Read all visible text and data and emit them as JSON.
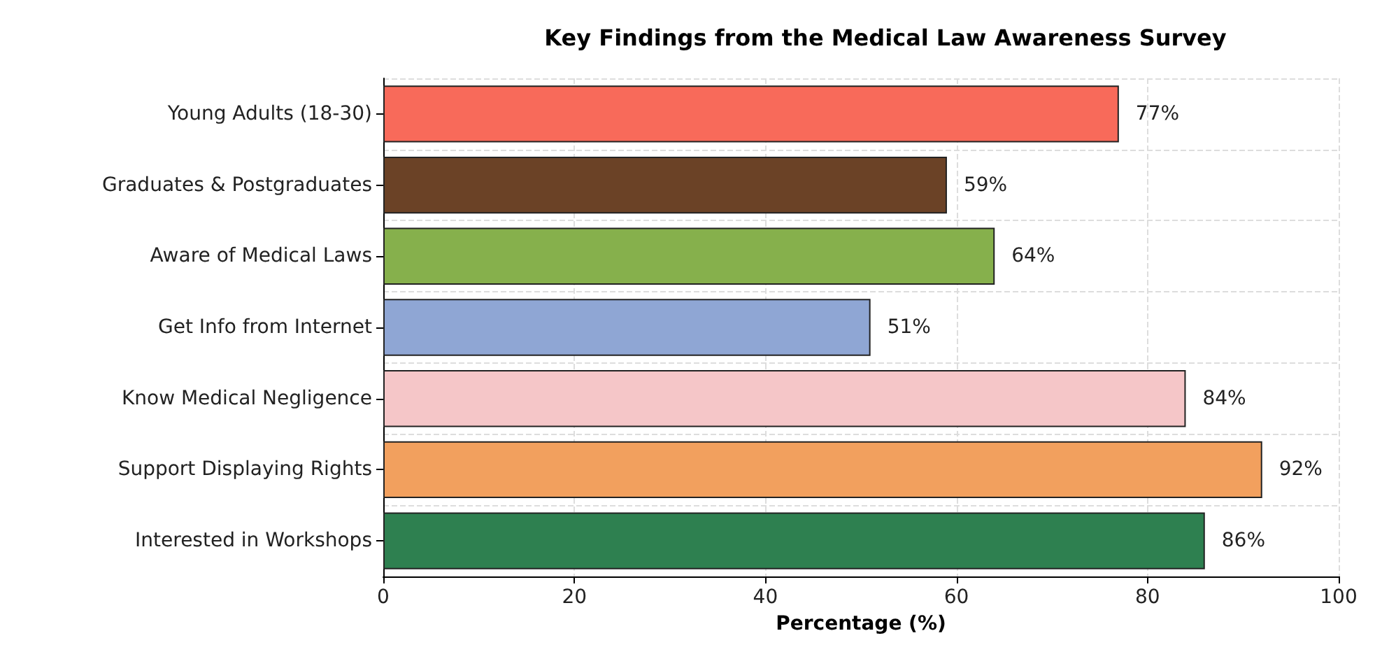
{
  "chart_data": {
    "type": "bar",
    "orientation": "horizontal",
    "title": "Key Findings from the Medical Law Awareness Survey",
    "xlabel": "Percentage (%)",
    "categories": [
      "Young Adults (18-30)",
      "Graduates & Postgraduates",
      "Aware of Medical Laws",
      "Get Info from Internet",
      "Know Medical Negligence",
      "Support Displaying Rights",
      "Interested in Workshops"
    ],
    "values": [
      77,
      59,
      64,
      51,
      84,
      92,
      86
    ],
    "colors": [
      "#f86a5a",
      "#6b4226",
      "#86b04c",
      "#8fa6d4",
      "#f5c6c8",
      "#f2a05e",
      "#2e8050"
    ],
    "value_labels": [
      "77%",
      "59%",
      "64%",
      "51%",
      "84%",
      "92%",
      "86%"
    ],
    "xlim": [
      0,
      100
    ],
    "xticks": [
      0,
      20,
      40,
      60,
      80,
      100
    ],
    "grid": true
  }
}
